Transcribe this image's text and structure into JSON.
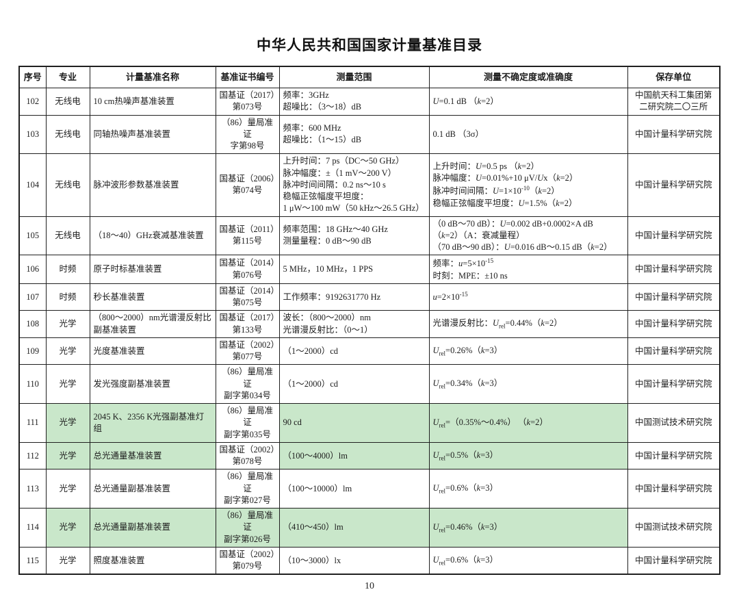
{
  "title": "中华人民共和国国家计量基准目录",
  "page_number": "10",
  "colors": {
    "highlight_green": "#c9e7ca",
    "border": "#1f1f1f",
    "background": "#ffffff"
  },
  "table": {
    "columns": [
      {
        "key": "no",
        "label": "序号"
      },
      {
        "key": "field",
        "label": "专业"
      },
      {
        "key": "name",
        "label": "计量基准名称"
      },
      {
        "key": "cert",
        "label": "基准证书编号"
      },
      {
        "key": "range",
        "label": "测量范围"
      },
      {
        "key": "uncertainty",
        "label": "测量不确定度或准确度"
      },
      {
        "key": "keeper",
        "label": "保存单位"
      }
    ],
    "rows": [
      {
        "no": "102",
        "field": "无线电",
        "name": "10 cm热噪声基准装置",
        "cert": [
          "国基证（2017）",
          "第073号"
        ],
        "range": [
          "频率：3GHz",
          "超噪比：（3～18）dB"
        ],
        "uncertainty": [
          "<i>U</i>=0.1 dB （<i>k</i>=2）"
        ],
        "keeper": "中国航天科工集团第二研究院二〇三所",
        "highlight": []
      },
      {
        "no": "103",
        "field": "无线电",
        "name": "同轴热噪声基准装置",
        "cert": [
          "（86）量局准证",
          "字第98号"
        ],
        "range": [
          "频率：600 MHz",
          "超噪比：（1～15）dB"
        ],
        "uncertainty": [
          "0.1 dB （3σ）"
        ],
        "keeper": "中国计量科学研究院",
        "highlight": []
      },
      {
        "no": "104",
        "field": "无线电",
        "name": "脉冲波形参数基准装置",
        "cert": [
          "国基证（2006）",
          "第074号"
        ],
        "range": [
          "上升时间：7 ps（DC～50 GHz）",
          "脉冲幅度：±（1 mV～200 V）",
          "脉冲时间间隔：0.2 ns～10 s",
          "稳幅正弦幅度平坦度：",
          "1 μW～100 mW（50 kHz～26.5 GHz）"
        ],
        "uncertainty": [
          "上升时间：<i>U</i>=0.5 ps （<i>k</i>=2）",
          "脉冲幅度：<i>U</i>=0.01%+10 μV/<i>U</i>x（<i>k</i>=2）",
          "脉冲时间间隔：<i>U</i>=1×10<sup>-10</sup>（<i>k</i>=2）",
          "稳幅正弦幅度平坦度：<i>U</i>=1.5%（<i>k</i>=2）"
        ],
        "keeper": "中国计量科学研究院",
        "highlight": []
      },
      {
        "no": "105",
        "field": "无线电",
        "name": "（18～40）GHz衰减基准装置",
        "cert": [
          "国基证（2011）",
          "第115号"
        ],
        "range": [
          "频率范围：18 GHz～40 GHz",
          "测量量程：0 dB～90 dB"
        ],
        "uncertainty": [
          "（0 dB～70 dB）：<i>U</i>=0.002 dB+0.0002×A dB",
          "（<i>k</i>=2）（A：衰减量程）",
          "（70 dB～90 dB）：<i>U</i>=0.016 dB～0.15 dB（<i>k</i>=2）"
        ],
        "keeper": "中国计量科学研究院",
        "highlight": []
      },
      {
        "no": "106",
        "field": "时频",
        "name": "原子时标基准装置",
        "cert": [
          "国基证（2014）",
          "第076号"
        ],
        "range": [
          "5 MHz，10 MHz，1 PPS"
        ],
        "uncertainty": [
          "频率：<i>u</i>=5×10<sup>-15</sup>",
          "时刻：MPE：±10 ns"
        ],
        "keeper": "中国计量科学研究院",
        "highlight": []
      },
      {
        "no": "107",
        "field": "时频",
        "name": "秒长基准装置",
        "cert": [
          "国基证（2014）",
          "第075号"
        ],
        "range": [
          "工作频率：9192631770 Hz"
        ],
        "uncertainty": [
          "<i>u</i>=2×10<sup>-15</sup>"
        ],
        "keeper": "中国计量科学研究院",
        "highlight": []
      },
      {
        "no": "108",
        "field": "光学",
        "name": "（800～2000）nm光谱漫反射比副基准装置",
        "cert": [
          "国基证（2017）",
          "第133号"
        ],
        "range": [
          "波长：（800～2000）nm",
          "光谱漫反射比：（0～1）"
        ],
        "uncertainty": [
          "光谱漫反射比：<i>U</i><sub>rel</sub>=0.44%（<i>k</i>=2）"
        ],
        "keeper": "中国计量科学研究院",
        "highlight": []
      },
      {
        "no": "109",
        "field": "光学",
        "name": "光度基准装置",
        "cert": [
          "国基证（2002）",
          "第077号"
        ],
        "range": [
          "（1～2000）cd"
        ],
        "uncertainty": [
          "<i>U</i><sub>rel</sub>=0.26%（<i>k</i>=3）"
        ],
        "keeper": "中国计量科学研究院",
        "highlight": []
      },
      {
        "no": "110",
        "field": "光学",
        "name": "发光强度副基准装置",
        "cert": [
          "（86）量局准证",
          "副字第034号"
        ],
        "range": [
          "（1～2000）cd"
        ],
        "uncertainty": [
          "<i>U</i><sub>rel</sub>=0.34%（<i>k</i>=3）"
        ],
        "keeper": "中国计量科学研究院",
        "highlight": []
      },
      {
        "no": "111",
        "field": "光学",
        "name": "2045 K、2356 K光强副基准灯组",
        "cert": [
          "（86）量局准证",
          "副字第035号"
        ],
        "range": [
          "90 cd"
        ],
        "uncertainty": [
          "<i>U</i><sub>rel</sub>=（0.35%～0.4%） （<i>k</i>=2）"
        ],
        "keeper": "中国测试技术研究院",
        "highlight": [
          "field",
          "name",
          "range",
          "uncertainty"
        ]
      },
      {
        "no": "112",
        "field": "光学",
        "name": "总光通量基准装置",
        "cert": [
          "国基证（2002）",
          "第078号"
        ],
        "range": [
          "（100～4000）lm"
        ],
        "uncertainty": [
          "<i>U</i><sub>rel</sub>=0.5%（<i>k</i>=3）"
        ],
        "keeper": "中国计量科学研究院",
        "highlight": [
          "field",
          "name",
          "range",
          "uncertainty"
        ]
      },
      {
        "no": "113",
        "field": "光学",
        "name": "总光通量副基准装置",
        "cert": [
          "（86）量局准证",
          "副字第027号"
        ],
        "range": [
          "（100～10000）lm"
        ],
        "uncertainty": [
          "<i>U</i><sub>rel</sub>=0.6%（<i>k</i>=3）"
        ],
        "keeper": "中国计量科学研究院",
        "highlight": []
      },
      {
        "no": "114",
        "field": "光学",
        "name": "总光通量副基准装置",
        "cert": [
          "（86）量局准证",
          "副字第026号"
        ],
        "range": [
          "（410～450）lm"
        ],
        "uncertainty": [
          "<i>U</i><sub>rel</sub>=0.46%（<i>k</i>=3）"
        ],
        "keeper": "中国测试技术研究院",
        "highlight": [
          "field",
          "name",
          "cert",
          "range",
          "uncertainty"
        ]
      },
      {
        "no": "115",
        "field": "光学",
        "name": "照度基准装置",
        "cert": [
          "国基证（2002）",
          "第079号"
        ],
        "range": [
          "（10～3000）lx"
        ],
        "uncertainty": [
          "<i>U</i><sub>rel</sub>=0.6%（<i>k</i>=3）"
        ],
        "keeper": "中国计量科学研究院",
        "highlight": []
      }
    ]
  }
}
